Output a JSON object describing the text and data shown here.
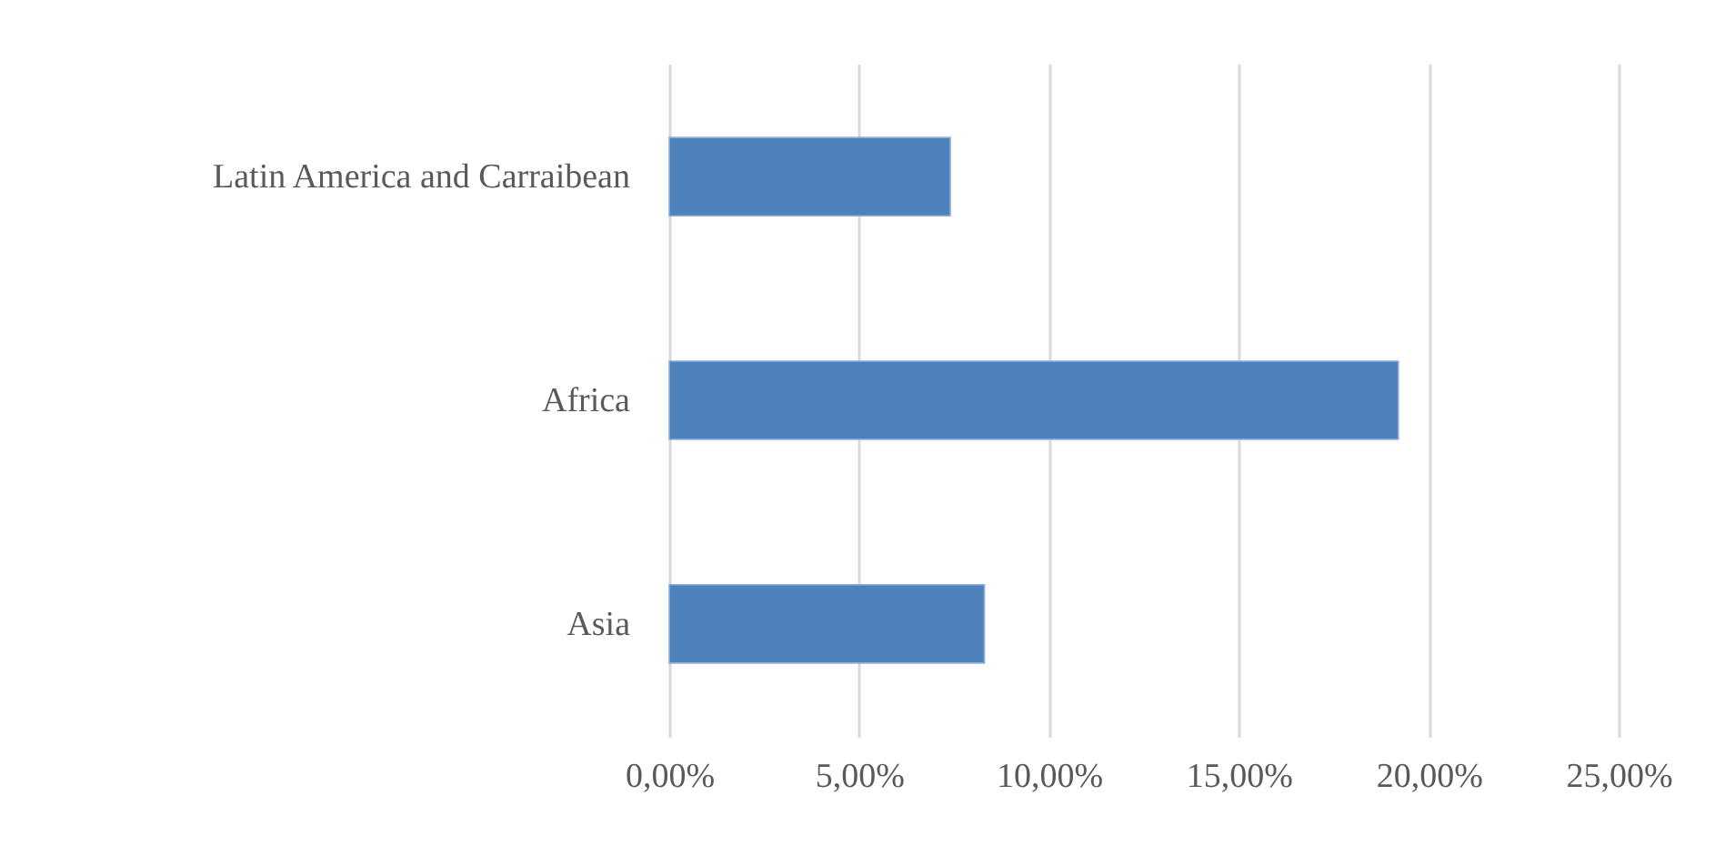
{
  "chart_data": {
    "type": "bar",
    "orientation": "horizontal",
    "categories": [
      "Latin America and Carraibean",
      "Africa",
      "Asia"
    ],
    "values": [
      7.4,
      19.2,
      8.3
    ],
    "color": "#4f81bd",
    "xlim": [
      0,
      25
    ],
    "xticks": [
      {
        "value": 0,
        "label": "0,00%"
      },
      {
        "value": 5,
        "label": "5,00%"
      },
      {
        "value": 10,
        "label": "10,00%"
      },
      {
        "value": 15,
        "label": "15,00%"
      },
      {
        "value": 20,
        "label": "20,00%"
      },
      {
        "value": 25,
        "label": "25,00%"
      }
    ],
    "grid": "x"
  }
}
